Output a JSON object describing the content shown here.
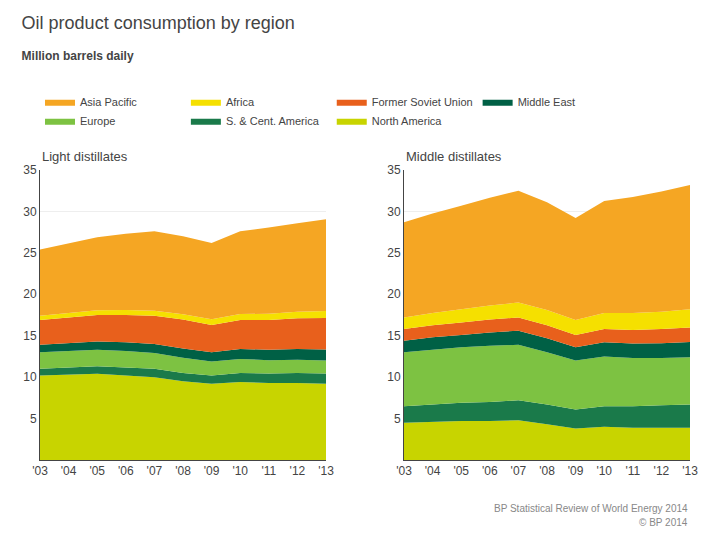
{
  "title": "Oil product consumption by region",
  "subtitle": "Million barrels daily",
  "annotations": [
    "BP Statistical Review of World Energy 2014",
    "© BP 2014"
  ],
  "chart_data": [
    {
      "type": "area",
      "title": "Light distillates",
      "stacked": true,
      "categories": [
        "'03",
        "'04",
        "'05",
        "'06",
        "'07",
        "'08",
        "'09",
        "'10",
        "'11",
        "'12",
        "'13"
      ],
      "series": [
        {
          "name": "North America",
          "color": "#C8D400",
          "values": [
            10.2,
            10.3,
            10.4,
            10.2,
            10.0,
            9.5,
            9.2,
            9.4,
            9.3,
            9.3,
            9.2
          ]
        },
        {
          "name": "S. & Cent. America",
          "color": "#1A7A4A",
          "values": [
            0.8,
            0.85,
            0.9,
            0.95,
            1.0,
            1.0,
            1.0,
            1.1,
            1.15,
            1.2,
            1.25
          ]
        },
        {
          "name": "Europe",
          "color": "#7DC242",
          "values": [
            2.0,
            2.0,
            2.0,
            2.0,
            1.9,
            1.85,
            1.7,
            1.7,
            1.6,
            1.6,
            1.55
          ]
        },
        {
          "name": "Middle East",
          "color": "#006045",
          "values": [
            0.9,
            0.95,
            1.0,
            1.05,
            1.1,
            1.1,
            1.1,
            1.2,
            1.25,
            1.3,
            1.35
          ]
        },
        {
          "name": "Former Soviet Union",
          "color": "#E8601C",
          "values": [
            3.0,
            3.1,
            3.2,
            3.3,
            3.4,
            3.5,
            3.3,
            3.5,
            3.6,
            3.7,
            3.8
          ]
        },
        {
          "name": "Africa",
          "color": "#F5E000",
          "values": [
            0.5,
            0.55,
            0.58,
            0.6,
            0.62,
            0.65,
            0.68,
            0.72,
            0.75,
            0.78,
            0.82
          ]
        },
        {
          "name": "Asia Pacific",
          "color": "#F5A623",
          "values": [
            8.0,
            8.4,
            8.8,
            9.2,
            9.6,
            9.4,
            9.2,
            10.0,
            10.4,
            10.7,
            11.1
          ]
        }
      ],
      "ylim": [
        0,
        35
      ],
      "yticks": [
        5,
        10,
        15,
        20,
        25,
        30,
        35
      ],
      "grid": true,
      "legend": "top left"
    },
    {
      "type": "area",
      "title": "Middle distillates",
      "stacked": true,
      "categories": [
        "'03",
        "'04",
        "'05",
        "'06",
        "'07",
        "'08",
        "'09",
        "'10",
        "'11",
        "'12",
        "'13"
      ],
      "series": [
        {
          "name": "North America",
          "color": "#C8D400",
          "values": [
            4.5,
            4.6,
            4.7,
            4.7,
            4.8,
            4.3,
            3.8,
            4.0,
            3.9,
            3.9,
            3.9
          ]
        },
        {
          "name": "S. & Cent. America",
          "color": "#1A7A4A",
          "values": [
            2.0,
            2.1,
            2.2,
            2.3,
            2.4,
            2.4,
            2.3,
            2.5,
            2.6,
            2.7,
            2.8
          ]
        },
        {
          "name": "Europe",
          "color": "#7DC242",
          "values": [
            6.5,
            6.6,
            6.7,
            6.8,
            6.7,
            6.3,
            5.9,
            6.0,
            5.8,
            5.7,
            5.7
          ]
        },
        {
          "name": "Middle East",
          "color": "#006045",
          "values": [
            1.4,
            1.5,
            1.5,
            1.6,
            1.7,
            1.7,
            1.6,
            1.7,
            1.75,
            1.8,
            1.85
          ]
        },
        {
          "name": "Former Soviet Union",
          "color": "#E8601C",
          "values": [
            1.4,
            1.45,
            1.5,
            1.55,
            1.6,
            1.55,
            1.5,
            1.6,
            1.65,
            1.7,
            1.75
          ]
        },
        {
          "name": "Africa",
          "color": "#F5E000",
          "values": [
            1.4,
            1.5,
            1.6,
            1.7,
            1.8,
            1.85,
            1.8,
            1.95,
            2.05,
            2.1,
            2.2
          ]
        },
        {
          "name": "Asia Pacific",
          "color": "#F5A623",
          "values": [
            11.5,
            12.0,
            12.5,
            13.0,
            13.5,
            13.0,
            12.3,
            13.5,
            14.0,
            14.5,
            15.0
          ]
        }
      ],
      "ylim": [
        0,
        35
      ],
      "yticks": [
        5,
        10,
        15,
        20,
        25,
        30,
        35
      ],
      "grid": true
    }
  ]
}
